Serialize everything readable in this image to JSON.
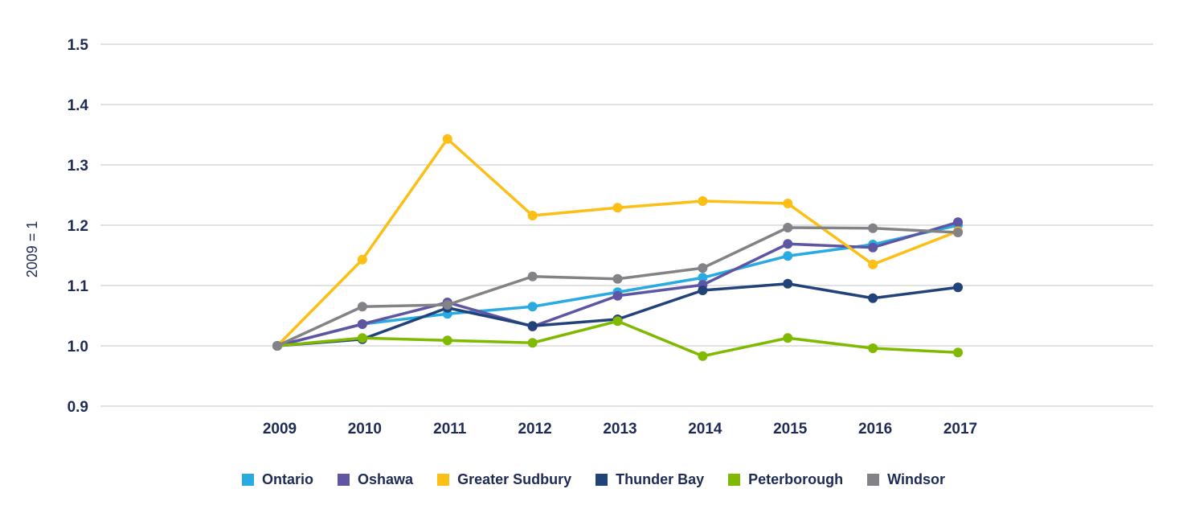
{
  "chart_data": {
    "type": "line",
    "title": "",
    "xlabel": "",
    "ylabel": "2009 = 1",
    "ylim": [
      0.9,
      1.5
    ],
    "yticks": [
      "0.9",
      "1.0",
      "1.1",
      "1.2",
      "1.3",
      "1.4",
      "1.5"
    ],
    "grid": true,
    "legend_position": "bottom",
    "x": [
      "2009",
      "2010",
      "2011",
      "2012",
      "2013",
      "2014",
      "2015",
      "2016",
      "2017"
    ],
    "series": [
      {
        "name": "Ontario",
        "color": "#29abe2",
        "values": [
          1.0,
          1.036,
          1.053,
          1.065,
          1.089,
          1.113,
          1.149,
          1.168,
          1.2
        ]
      },
      {
        "name": "Oshawa",
        "color": "#5e56a2",
        "values": [
          1.0,
          1.036,
          1.072,
          1.032,
          1.083,
          1.101,
          1.169,
          1.163,
          1.205
        ]
      },
      {
        "name": "Greater Sudbury",
        "color": "#fbbf16",
        "values": [
          1.0,
          1.143,
          1.343,
          1.216,
          1.229,
          1.24,
          1.236,
          1.135,
          1.19
        ]
      },
      {
        "name": "Thunder Bay",
        "color": "#22427a",
        "values": [
          1.0,
          1.011,
          1.063,
          1.033,
          1.044,
          1.092,
          1.103,
          1.079,
          1.097
        ]
      },
      {
        "name": "Peterborough",
        "color": "#7fba00",
        "values": [
          1.0,
          1.013,
          1.009,
          1.005,
          1.041,
          0.983,
          1.013,
          0.996,
          0.989
        ]
      },
      {
        "name": "Windsor",
        "color": "#838387",
        "values": [
          1.0,
          1.065,
          1.068,
          1.115,
          1.111,
          1.129,
          1.196,
          1.195,
          1.188
        ]
      }
    ]
  }
}
